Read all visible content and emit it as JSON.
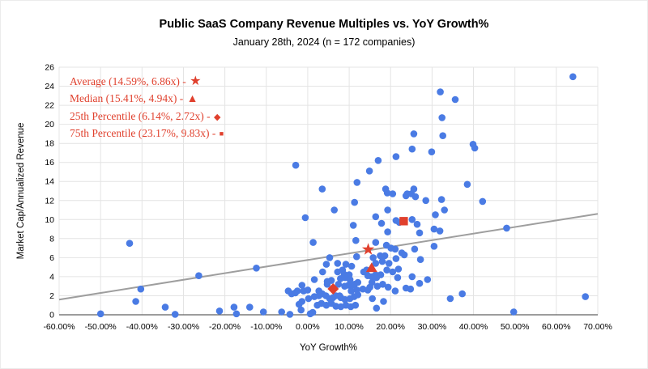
{
  "figure": {
    "title": "Public SaaS Company Revenue Multiples vs. YoY Growth%",
    "subtitle": "January 28th, 2024 (n = 172 companies)"
  },
  "chart_data": {
    "type": "scatter",
    "title": "Public SaaS Company Revenue Multiples vs. YoY Growth%",
    "subtitle": "January 28th, 2024 (n = 172 companies)",
    "n_companies": 172,
    "xlabel": "YoY Growth%",
    "ylabel": "Market Cap/Annualized Revenue",
    "xlim": [
      -60,
      70
    ],
    "ylim": [
      0,
      26
    ],
    "grid": true,
    "x_ticks": [
      -60,
      -50,
      -40,
      -30,
      -20,
      -10,
      0,
      10,
      20,
      30,
      40,
      50,
      60,
      70
    ],
    "x_tick_labels": [
      "-60.00%",
      "-50.00%",
      "-40.00%",
      "-30.00%",
      "-20.00%",
      "-10.00%",
      "0.00%",
      "10.00%",
      "20.00%",
      "30.00%",
      "40.00%",
      "50.00%",
      "60.00%",
      "70.00%"
    ],
    "y_ticks": [
      0,
      2,
      4,
      6,
      8,
      10,
      12,
      14,
      16,
      18,
      20,
      22,
      24,
      26
    ],
    "point_color": "#4a7be4",
    "accent_color": "#e0402d",
    "gridline_color": "#e4e4e4",
    "axis_line_color": "#616161",
    "trendline": {
      "x1": -60,
      "y1": 1.6,
      "x2": 70,
      "y2": 10.6,
      "color": "#9e9e9e"
    },
    "stat_markers": [
      {
        "name": "Average",
        "x": 14.59,
        "y": 6.86,
        "marker": "star",
        "glyph": "★",
        "label": "Average (14.59%, 6.86x) - "
      },
      {
        "name": "Median",
        "x": 15.41,
        "y": 4.94,
        "marker": "triangle",
        "glyph": "▲",
        "label": "Median (15.41%, 4.94x) - "
      },
      {
        "name": "25th Percentile",
        "x": 6.14,
        "y": 2.72,
        "marker": "diamond",
        "glyph": "◆",
        "label": "25th Percentile (6.14%, 2.72x) - "
      },
      {
        "name": "75th Percentile",
        "x": 23.17,
        "y": 9.83,
        "marker": "square",
        "glyph": "■",
        "label": "75th Percentile (23.17%, 9.83x) - "
      }
    ],
    "series": [
      {
        "name": "SaaS companies",
        "marker": "circle",
        "color": "#4a7be4",
        "points": [
          [
            64,
            25
          ],
          [
            32,
            23.4
          ],
          [
            35.6,
            22.6
          ],
          [
            32.4,
            20.7
          ],
          [
            25.6,
            19
          ],
          [
            32.6,
            18.8
          ],
          [
            39.9,
            17.9
          ],
          [
            40.3,
            17.5
          ],
          [
            25.2,
            17.4
          ],
          [
            29.9,
            17.1
          ],
          [
            21.3,
            16.6
          ],
          [
            17,
            16.2
          ],
          [
            -2.9,
            15.7
          ],
          [
            14.9,
            15.1
          ],
          [
            11.9,
            13.9
          ],
          [
            38.5,
            13.7
          ],
          [
            3.5,
            13.2
          ],
          [
            18.8,
            13.2
          ],
          [
            25.6,
            13.2
          ],
          [
            24,
            12.7
          ],
          [
            20.5,
            12.7
          ],
          [
            19.2,
            12.8
          ],
          [
            25,
            12.7
          ],
          [
            23.7,
            12.5
          ],
          [
            26,
            12.4
          ],
          [
            28.5,
            12
          ],
          [
            32.3,
            12.1
          ],
          [
            42.2,
            11.9
          ],
          [
            6.4,
            11
          ],
          [
            11.3,
            11.8
          ],
          [
            19.3,
            11
          ],
          [
            33,
            11
          ],
          [
            30.8,
            10.5
          ],
          [
            -0.6,
            10.2
          ],
          [
            16.4,
            10.3
          ],
          [
            25.2,
            10
          ],
          [
            17.8,
            9.6
          ],
          [
            21.3,
            9.9
          ],
          [
            22.1,
            9.7
          ],
          [
            26.4,
            9.5
          ],
          [
            11,
            9.4
          ],
          [
            48,
            9.1
          ],
          [
            30.5,
            9
          ],
          [
            19.3,
            8.7
          ],
          [
            31.9,
            8.8
          ],
          [
            27,
            8.6
          ],
          [
            -43,
            7.5
          ],
          [
            1.3,
            7.6
          ],
          [
            11.6,
            7.8
          ],
          [
            16.4,
            7.6
          ],
          [
            19,
            7.3
          ],
          [
            30.5,
            7.2
          ],
          [
            20.1,
            7
          ],
          [
            21.1,
            6.9
          ],
          [
            25.8,
            6.9
          ],
          [
            22.7,
            6.5
          ],
          [
            5.3,
            6
          ],
          [
            11.8,
            6.1
          ],
          [
            15.8,
            6
          ],
          [
            17.5,
            6.2
          ],
          [
            18.6,
            6.2
          ],
          [
            23.3,
            6.3
          ],
          [
            16.4,
            5.4
          ],
          [
            18,
            5.6
          ],
          [
            19.6,
            5.4
          ],
          [
            21.3,
            5.9
          ],
          [
            27.2,
            5.8
          ],
          [
            7.2,
            5.4
          ],
          [
            4.5,
            5.3
          ],
          [
            9.2,
            5.3
          ],
          [
            10.6,
            5.1
          ],
          [
            -12.4,
            4.9
          ],
          [
            8.4,
            4.7
          ],
          [
            14.2,
            4.7
          ],
          [
            19.1,
            4.7
          ],
          [
            20.5,
            4.5
          ],
          [
            21.9,
            4.8
          ],
          [
            17.6,
            4.2
          ],
          [
            7.2,
            4.5
          ],
          [
            8.8,
            4.25
          ],
          [
            10,
            4.2
          ],
          [
            13.5,
            4.5
          ],
          [
            14.5,
            4.1
          ],
          [
            16.4,
            4.2
          ],
          [
            15.5,
            4
          ],
          [
            16.6,
            3.9
          ],
          [
            21.7,
            3.9
          ],
          [
            25.2,
            4
          ],
          [
            3.6,
            4.5
          ],
          [
            -26.3,
            4.1
          ],
          [
            1.6,
            3.7
          ],
          [
            4.7,
            3.2
          ],
          [
            7.4,
            3.2
          ],
          [
            7.9,
            3.8
          ],
          [
            9,
            3.9
          ],
          [
            10.2,
            3.7
          ],
          [
            11.3,
            3.2
          ],
          [
            28.9,
            3.7
          ],
          [
            27,
            3.3
          ],
          [
            15.5,
            3.4
          ],
          [
            16.8,
            3
          ],
          [
            18.1,
            3.2
          ],
          [
            -1.4,
            3.1
          ],
          [
            4.7,
            3.5
          ],
          [
            5.7,
            3.6
          ],
          [
            9.8,
            3.1
          ],
          [
            11,
            3.1
          ],
          [
            12.1,
            3.4
          ],
          [
            -4.7,
            2.5
          ],
          [
            -3.9,
            2.2
          ],
          [
            -2.5,
            2.5
          ],
          [
            -1,
            2.5
          ],
          [
            0,
            2.6
          ],
          [
            2.7,
            2.5
          ],
          [
            3.5,
            2.2
          ],
          [
            -3,
            2.3
          ],
          [
            8.9,
            3
          ],
          [
            13.3,
            2.7
          ],
          [
            14.5,
            2.6
          ],
          [
            15,
            2.9
          ],
          [
            19.4,
            2.9
          ],
          [
            23.7,
            2.8
          ],
          [
            24.8,
            2.7
          ],
          [
            21.1,
            2.5
          ],
          [
            11.9,
            2.6
          ],
          [
            10.5,
            2.5
          ],
          [
            37.3,
            2.2
          ],
          [
            67,
            1.9
          ],
          [
            -40.3,
            2.7
          ],
          [
            1.6,
            1.9
          ],
          [
            5.3,
            1.7
          ],
          [
            6.8,
            2
          ],
          [
            8,
            1.8
          ],
          [
            9,
            1.6
          ],
          [
            10.2,
            1.7
          ],
          [
            11.2,
            1.9
          ],
          [
            12.1,
            2.1
          ],
          [
            2.7,
            2
          ],
          [
            4.4,
            2
          ],
          [
            0.2,
            1.7
          ],
          [
            -1.4,
            1.4
          ],
          [
            15.6,
            1.7
          ],
          [
            18.3,
            1.4
          ],
          [
            34.4,
            1.7
          ],
          [
            -41.5,
            1.4
          ],
          [
            7.7,
            2
          ],
          [
            6.1,
            1.8
          ],
          [
            -50,
            0.1
          ],
          [
            -34.4,
            0.8
          ],
          [
            -32,
            0.05
          ],
          [
            -21.3,
            0.4
          ],
          [
            -17.8,
            0.8
          ],
          [
            -17.2,
            0.1
          ],
          [
            -14,
            0.8
          ],
          [
            -10.7,
            0.3
          ],
          [
            -6.3,
            0.3
          ],
          [
            -4.3,
            0.05
          ],
          [
            0.6,
            0.1
          ],
          [
            1.2,
            0.25
          ],
          [
            2.3,
            1
          ],
          [
            3.3,
            1.2
          ],
          [
            4.5,
            1
          ],
          [
            5.7,
            1.2
          ],
          [
            6.8,
            0.9
          ],
          [
            8,
            0.85
          ],
          [
            9.2,
            1
          ],
          [
            10.4,
            0.85
          ],
          [
            11.5,
            1
          ],
          [
            -1.6,
            0.5
          ],
          [
            -2.1,
            1.1
          ],
          [
            16.6,
            0.7
          ],
          [
            49.7,
            0.3
          ]
        ]
      }
    ]
  }
}
